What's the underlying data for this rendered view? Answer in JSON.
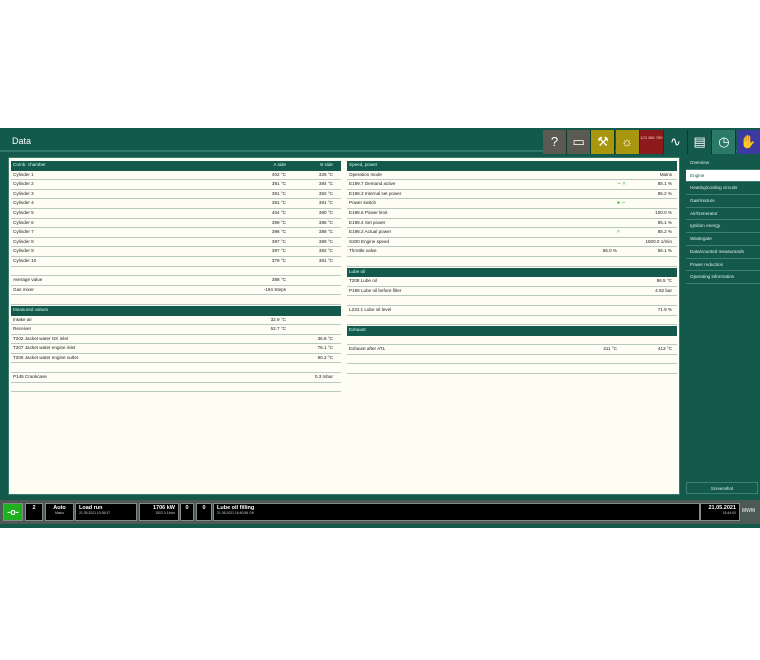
{
  "title": "Data",
  "toolbar": [
    {
      "icon": "help-icon",
      "glyph": "?",
      "color": "#5a5a52"
    },
    {
      "icon": "computer-icon",
      "glyph": "▭",
      "color": "#5a5a52"
    },
    {
      "icon": "wrench-icon",
      "glyph": "⚒",
      "color": "#a8960e"
    },
    {
      "icon": "lamp-icon",
      "glyph": "☼",
      "color": "#a8960e"
    },
    {
      "icon": "keypad-icon",
      "glyph": "123 456 789",
      "color": "#8c1a1a"
    },
    {
      "icon": "trend-icon",
      "glyph": "∿",
      "color": "#135a4c"
    },
    {
      "icon": "list-icon",
      "glyph": "▤",
      "color": "#135a4c"
    },
    {
      "icon": "gauge-icon",
      "glyph": "◷",
      "color": "#2b7a68"
    },
    {
      "icon": "hand-icon",
      "glyph": "✋",
      "color": "#3a3aa0"
    }
  ],
  "left": [
    {
      "t": "hdr",
      "label": "Comb. chamber",
      "c1": "A side",
      "c2": "B side"
    },
    {
      "label": "Cylinder 1",
      "c1": "402 °C",
      "c2": "326 °C"
    },
    {
      "label": "Cylinder 2",
      "c1": "391 °C",
      "c2": "384 °C"
    },
    {
      "label": "Cylinder 3",
      "c1": "391 °C",
      "c2": "392 °C"
    },
    {
      "label": "Cylinder 4",
      "c1": "391 °C",
      "c2": "381 °C"
    },
    {
      "label": "Cylinder 5",
      "c1": "404 °C",
      "c2": "380 °C"
    },
    {
      "label": "Cylinder 6",
      "c1": "399 °C",
      "c2": "385 °C"
    },
    {
      "label": "Cylinder 7",
      "c1": "396 °C",
      "c2": "388 °C"
    },
    {
      "label": "Cylinder 8",
      "c1": "397 °C",
      "c2": "389 °C"
    },
    {
      "label": "Cylinder 9",
      "c1": "397 °C",
      "c2": "382 °C"
    },
    {
      "label": "Cylinder 10",
      "c1": "379 °C",
      "c2": "381 °C"
    },
    {
      "t": "blank"
    },
    {
      "label": "Average value",
      "c1": "388 °C"
    },
    {
      "label": "Gas mixer",
      "c1": "-194 Steps"
    },
    {
      "t": "blank"
    },
    {
      "t": "hdr",
      "label": "Measured values"
    },
    {
      "label": "Intake air",
      "c1": "32.9 °C"
    },
    {
      "label": "Receiver",
      "c1": "52.7 °C"
    },
    {
      "label": "T202 Jacket water GK inlet",
      "c2": "36.8 °C"
    },
    {
      "label": "T207 Jacket water engine inlet",
      "c2": "78.1 °C"
    },
    {
      "label": "T206 Jacket water engine outlet",
      "c2": "90.2 °C"
    },
    {
      "t": "blank"
    },
    {
      "label": "P145 Crankcase",
      "c2": "0.3 mbar"
    },
    {
      "t": "blank"
    }
  ],
  "right": [
    {
      "t": "hdr",
      "label": "Speed, power"
    },
    {
      "label": "Operation mode",
      "c2": "Mains"
    },
    {
      "label": "E199.7 Demand active",
      "ic": "∼  ˄",
      "c2": "85.1 %"
    },
    {
      "label": "E198.3 Internal set power",
      "c2": "85.2 %"
    },
    {
      "label": "Power switch",
      "ic": "● ∼",
      "c2": ""
    },
    {
      "label": "E198.6 Power limit",
      "c2": "100.0 %"
    },
    {
      "label": "E198.4 Set power",
      "c2": "85.1 %"
    },
    {
      "label": "E198.2 Actual power",
      "ic": "˄",
      "c2": "85.2 %"
    },
    {
      "label": "S200 Engine speed",
      "c2": "1500.0 1/min"
    },
    {
      "label": "Throttle valve",
      "c1": "56.0 %",
      "c2": "56.1 %"
    },
    {
      "t": "blank"
    },
    {
      "t": "hdr",
      "label": "Lube oil"
    },
    {
      "label": "T208 Lube oil",
      "c2": "96.5 °C"
    },
    {
      "label": "P196 Lube oil before filter",
      "c2": "4.92 bar"
    },
    {
      "t": "blank"
    },
    {
      "label": "L234.1 Lube oil level",
      "c2": "71.9 %"
    },
    {
      "t": "blank"
    },
    {
      "t": "hdr",
      "label": "Exhaust"
    },
    {
      "t": "blank"
    },
    {
      "label": "Exhaust after ATL",
      "c1": "411 °C",
      "c2": "413 °C"
    },
    {
      "t": "blank"
    },
    {
      "t": "blank"
    }
  ],
  "sidebar": {
    "items": [
      "Overview",
      "Engine",
      "Heating/cooling circuits",
      "Gas/mixture",
      "Air/Generator",
      "Ignition energy",
      "Wastegate",
      "Data/counted measurands",
      "Power reduction",
      "Operating information"
    ],
    "selected": "Engine",
    "screenshot": "Screenshot"
  },
  "status": {
    "count": "2",
    "mode": "Auto",
    "mode_sub": "Mains",
    "state": "Load run",
    "state_time": "21.05.2021   10:35:37",
    "power": "1706 kW",
    "speed": "1502.3 1/min",
    "c1": "0",
    "c2": "0",
    "message": "Lube oil filling",
    "message_time": "21.05.2021 16:40:56 Off",
    "date": "21.05.2021",
    "time": "16:44:00",
    "logo": "MWM"
  }
}
